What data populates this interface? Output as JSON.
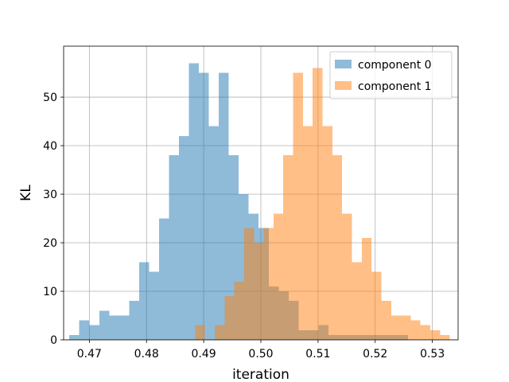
{
  "chart_data": {
    "type": "bar",
    "title": "",
    "xlabel": "iteration",
    "ylabel": "KL",
    "xlim": [
      0.4655,
      0.5345
    ],
    "ylim": [
      0,
      60.5
    ],
    "grid": true,
    "legend_position": "top-right",
    "x_ticks": [
      {
        "value": 0.47,
        "label": "0.47"
      },
      {
        "value": 0.48,
        "label": "0.48"
      },
      {
        "value": 0.49,
        "label": "0.49"
      },
      {
        "value": 0.5,
        "label": "0.50"
      },
      {
        "value": 0.51,
        "label": "0.51"
      },
      {
        "value": 0.52,
        "label": "0.52"
      },
      {
        "value": 0.53,
        "label": "0.53"
      }
    ],
    "y_ticks": [
      {
        "value": 0,
        "label": "0"
      },
      {
        "value": 10,
        "label": "10"
      },
      {
        "value": 20,
        "label": "20"
      },
      {
        "value": 30,
        "label": "30"
      },
      {
        "value": 40,
        "label": "40"
      },
      {
        "value": 50,
        "label": "50"
      }
    ],
    "series": [
      {
        "name": "component 0",
        "color": "#1f77b4",
        "opacity": 0.5,
        "bin_start": 0.4665,
        "bin_width": 0.001743,
        "counts": [
          1,
          4,
          3,
          6,
          5,
          5,
          8,
          16,
          14,
          25,
          38,
          42,
          57,
          55,
          44,
          55,
          38,
          30,
          26,
          23,
          11,
          10,
          8,
          2,
          2,
          3,
          1,
          1,
          1,
          1,
          1,
          1,
          1,
          1
        ]
      },
      {
        "name": "component 1",
        "color": "#ff7f0e",
        "opacity": 0.5,
        "bin_start": 0.4885,
        "bin_width": 0.001714,
        "counts": [
          3,
          0,
          3,
          9,
          12,
          23,
          20,
          23,
          26,
          38,
          55,
          44,
          56,
          44,
          38,
          26,
          16,
          21,
          14,
          8,
          5,
          5,
          4,
          3,
          2,
          1
        ]
      }
    ]
  }
}
